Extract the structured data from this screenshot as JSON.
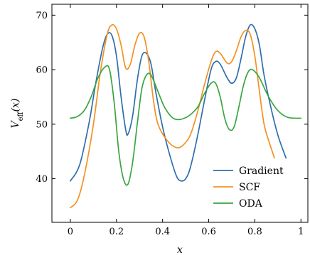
{
  "chart_data": {
    "type": "line",
    "xlabel": "x",
    "ylabel": "V_eff(x)",
    "ylabel_main": "V",
    "ylabel_sub": "eff",
    "ylabel_tail": "(x)",
    "xlim": [
      -0.08,
      1.03
    ],
    "ylim": [
      32,
      72
    ],
    "xticks": [
      0,
      0.2,
      0.4,
      0.6,
      0.8,
      1
    ],
    "xtick_labels": [
      "0",
      "0.2",
      "0.4",
      "0.6",
      "0.8",
      "1"
    ],
    "yticks": [
      40,
      50,
      60,
      70
    ],
    "ytick_labels": [
      "40",
      "50",
      "60",
      "70"
    ],
    "grid": false,
    "legend_position": "bottom-right",
    "series": [
      {
        "name": "Gradient",
        "color": "#2f6fad",
        "x": [
          0,
          0.04,
          0.08,
          0.11,
          0.14,
          0.16,
          0.18,
          0.2,
          0.22,
          0.24,
          0.25,
          0.27,
          0.29,
          0.31,
          0.33,
          0.35,
          0.37,
          0.4,
          0.43,
          0.46,
          0.48,
          0.5,
          0.52,
          0.55,
          0.58,
          0.61,
          0.63,
          0.65,
          0.68,
          0.7,
          0.72,
          0.74,
          0.76,
          0.78,
          0.8,
          0.82,
          0.84,
          0.87,
          0.9,
          0.935
        ],
        "values": [
          39.6,
          42.5,
          50,
          57.5,
          64,
          66.5,
          66.3,
          62.5,
          55,
          49,
          48.2,
          51.5,
          58,
          62.5,
          63,
          61,
          56,
          49.5,
          44.5,
          40.5,
          39.6,
          40,
          42,
          47.5,
          54,
          60,
          61.5,
          61,
          58.5,
          57.5,
          58.5,
          62,
          66,
          68.2,
          67.5,
          64.5,
          59,
          53,
          48,
          43.8
        ]
      },
      {
        "name": "SCF",
        "color": "#f39122",
        "x": [
          0,
          0.03,
          0.06,
          0.1,
          0.13,
          0.16,
          0.18,
          0.2,
          0.22,
          0.24,
          0.26,
          0.28,
          0.3,
          0.32,
          0.34,
          0.36,
          0.38,
          0.42,
          0.46,
          0.49,
          0.52,
          0.55,
          0.58,
          0.61,
          0.63,
          0.65,
          0.68,
          0.7,
          0.72,
          0.74,
          0.76,
          0.78,
          0.8,
          0.82,
          0.84,
          0.86,
          0.885
        ],
        "values": [
          34.7,
          36,
          40.5,
          50,
          59.5,
          66.5,
          68.2,
          67.5,
          64.5,
          60.3,
          61,
          64.5,
          66.7,
          66,
          61.5,
          54.5,
          50,
          47,
          45.7,
          46.2,
          48,
          52,
          57,
          61.5,
          63.3,
          63,
          61.2,
          61.5,
          63.5,
          66,
          67.2,
          66.5,
          62.5,
          56,
          50,
          47,
          43.8
        ]
      },
      {
        "name": "ODA",
        "color": "#3aa640",
        "x": [
          0,
          0.03,
          0.06,
          0.09,
          0.12,
          0.15,
          0.17,
          0.19,
          0.21,
          0.23,
          0.25,
          0.27,
          0.29,
          0.31,
          0.33,
          0.35,
          0.38,
          0.41,
          0.45,
          0.5,
          0.55,
          0.58,
          0.61,
          0.63,
          0.65,
          0.67,
          0.69,
          0.71,
          0.73,
          0.75,
          0.77,
          0.79,
          0.82,
          0.86,
          0.9,
          0.94,
          0.98,
          1.0
        ],
        "values": [
          51.1,
          51.4,
          52.5,
          55,
          58.5,
          60.5,
          60,
          54,
          45,
          40,
          39,
          43,
          50,
          56.5,
          59,
          59,
          56,
          53,
          51,
          51.2,
          53,
          55.5,
          57.5,
          57.5,
          55,
          51,
          49,
          49.5,
          53,
          57,
          59.5,
          60,
          58.5,
          55,
          52.5,
          51.3,
          51.1,
          51.1
        ]
      }
    ]
  }
}
